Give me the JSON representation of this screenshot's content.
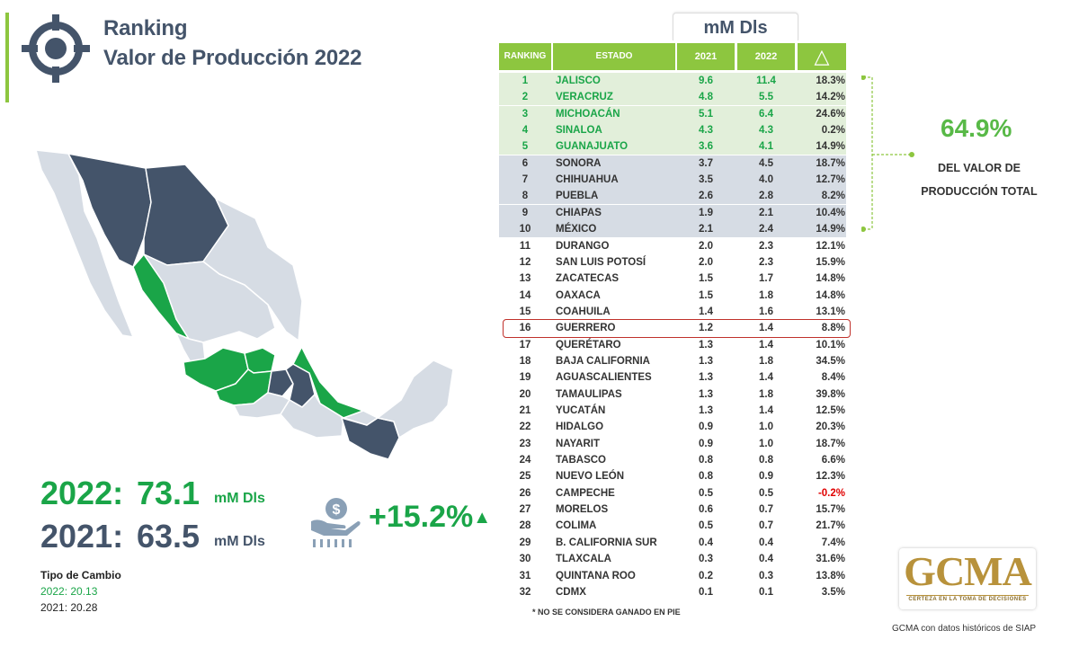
{
  "header": {
    "title_line1": "Ranking",
    "title_line2": "Valor de Producción 2022"
  },
  "totals": {
    "y2022_label": "2022:",
    "y2022_value": "73.1",
    "y2021_label": "2021:",
    "y2021_value": "63.5",
    "unit": "mM Dls",
    "change": "+15.2%"
  },
  "tipo_cambio": {
    "label": "Tipo de Cambio",
    "y2022": "2022: 20.13",
    "y2021": "2021: 20.28"
  },
  "table": {
    "units": "mM Dls",
    "headers": {
      "ranking": "RANKING",
      "estado": "ESTADO",
      "y2021": "2021",
      "y2022": "2022",
      "delta": "△"
    }
  },
  "chart_data": {
    "type": "table",
    "columns": [
      "RANKING",
      "ESTADO",
      "2021",
      "2022",
      "△"
    ],
    "rows": [
      {
        "rank": "1",
        "state": "JALISCO",
        "v2021": "9.6",
        "v2022": "11.4",
        "change": "18.3%"
      },
      {
        "rank": "2",
        "state": "VERACRUZ",
        "v2021": "4.8",
        "v2022": "5.5",
        "change": "14.2%"
      },
      {
        "rank": "3",
        "state": "MICHOACÁN",
        "v2021": "5.1",
        "v2022": "6.4",
        "change": "24.6%"
      },
      {
        "rank": "4",
        "state": "SINALOA",
        "v2021": "4.3",
        "v2022": "4.3",
        "change": "0.2%"
      },
      {
        "rank": "5",
        "state": "GUANAJUATO",
        "v2021": "3.6",
        "v2022": "4.1",
        "change": "14.9%"
      },
      {
        "rank": "6",
        "state": "SONORA",
        "v2021": "3.7",
        "v2022": "4.5",
        "change": "18.7%"
      },
      {
        "rank": "7",
        "state": "CHIHUAHUA",
        "v2021": "3.5",
        "v2022": "4.0",
        "change": "12.7%"
      },
      {
        "rank": "8",
        "state": "PUEBLA",
        "v2021": "2.6",
        "v2022": "2.8",
        "change": "8.2%"
      },
      {
        "rank": "9",
        "state": "CHIAPAS",
        "v2021": "1.9",
        "v2022": "2.1",
        "change": "10.4%"
      },
      {
        "rank": "10",
        "state": "MÉXICO",
        "v2021": "2.1",
        "v2022": "2.4",
        "change": "14.9%"
      },
      {
        "rank": "11",
        "state": "DURANGO",
        "v2021": "2.0",
        "v2022": "2.3",
        "change": "12.1%"
      },
      {
        "rank": "12",
        "state": "SAN LUIS POTOSÍ",
        "v2021": "2.0",
        "v2022": "2.3",
        "change": "15.9%"
      },
      {
        "rank": "13",
        "state": "ZACATECAS",
        "v2021": "1.5",
        "v2022": "1.7",
        "change": "14.8%"
      },
      {
        "rank": "14",
        "state": "OAXACA",
        "v2021": "1.5",
        "v2022": "1.8",
        "change": "14.8%"
      },
      {
        "rank": "15",
        "state": "COAHUILA",
        "v2021": "1.4",
        "v2022": "1.6",
        "change": "13.1%"
      },
      {
        "rank": "16",
        "state": "GUERRERO",
        "v2021": "1.2",
        "v2022": "1.4",
        "change": "8.8%"
      },
      {
        "rank": "17",
        "state": "QUERÉTARO",
        "v2021": "1.3",
        "v2022": "1.4",
        "change": "10.1%"
      },
      {
        "rank": "18",
        "state": "BAJA CALIFORNIA",
        "v2021": "1.3",
        "v2022": "1.8",
        "change": "34.5%"
      },
      {
        "rank": "19",
        "state": "AGUASCALIENTES",
        "v2021": "1.3",
        "v2022": "1.4",
        "change": "8.4%"
      },
      {
        "rank": "20",
        "state": "TAMAULIPAS",
        "v2021": "1.3",
        "v2022": "1.8",
        "change": "39.8%"
      },
      {
        "rank": "21",
        "state": "YUCATÁN",
        "v2021": "1.3",
        "v2022": "1.4",
        "change": "12.5%"
      },
      {
        "rank": "22",
        "state": "HIDALGO",
        "v2021": "0.9",
        "v2022": "1.0",
        "change": "20.3%"
      },
      {
        "rank": "23",
        "state": "NAYARIT",
        "v2021": "0.9",
        "v2022": "1.0",
        "change": "18.7%"
      },
      {
        "rank": "24",
        "state": "TABASCO",
        "v2021": "0.8",
        "v2022": "0.8",
        "change": "6.6%"
      },
      {
        "rank": "25",
        "state": "NUEVO LEÓN",
        "v2021": "0.8",
        "v2022": "0.9",
        "change": "12.3%"
      },
      {
        "rank": "26",
        "state": "CAMPECHE",
        "v2021": "0.5",
        "v2022": "0.5",
        "change": "-0.2%"
      },
      {
        "rank": "27",
        "state": "MORELOS",
        "v2021": "0.6",
        "v2022": "0.7",
        "change": "15.7%"
      },
      {
        "rank": "28",
        "state": "COLIMA",
        "v2021": "0.5",
        "v2022": "0.7",
        "change": "21.7%"
      },
      {
        "rank": "29",
        "state": "B. CALIFORNIA SUR",
        "v2021": "0.4",
        "v2022": "0.4",
        "change": "7.4%"
      },
      {
        "rank": "30",
        "state": "TLAXCALA",
        "v2021": "0.3",
        "v2022": "0.4",
        "change": "31.6%"
      },
      {
        "rank": "31",
        "state": "QUINTANA ROO",
        "v2021": "0.2",
        "v2022": "0.3",
        "change": "13.8%"
      },
      {
        "rank": "32",
        "state": "CDMX",
        "v2021": "0.1",
        "v2022": "0.1",
        "change": "3.5%"
      }
    ],
    "top5_count": 5,
    "top10_count": 10,
    "highlighted_rank": "16",
    "top10_share": "64.9%",
    "top10_share_label_line1": "DEL VALOR DE",
    "top10_share_label_line2": "PRODUCCIÓN TOTAL"
  },
  "colors": {
    "accent_green": "#8dc63f",
    "text_green": "#1aa548",
    "top5_row": "#e2efda",
    "top10_row": "#d6dce4",
    "dark_slate": "#44546a",
    "map_light": "#d6dce4",
    "negative": "#e00000"
  },
  "footnote": "* NO SE CONSIDERA GANADO EN PIE",
  "logo": {
    "text": "GCMA",
    "tagline": "CERTEZA EN LA TOMA DE DECISIONES"
  },
  "source": "GCMA con datos históricos de SIAP",
  "icons": {
    "title": "crosshair-target-icon",
    "money": "money-hand-wheat-icon"
  }
}
